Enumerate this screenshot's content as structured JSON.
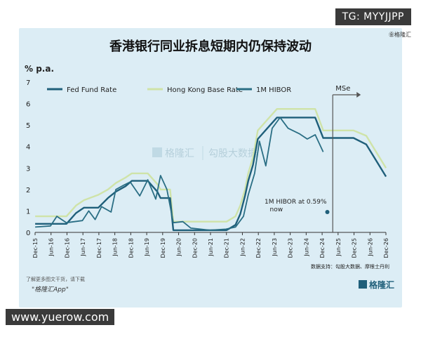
{
  "overlay": {
    "tg": "TG: MYYJJPP",
    "site": "www.yuerow.com",
    "corner": "㊎格隆汇"
  },
  "footer": {
    "note": "了解更多图文干货，请下载",
    "app": "\"格隆汇App\"",
    "source": "数据支持：勾股大数据、摩根士丹利",
    "logo": "格隆汇"
  },
  "watermark": {
    "brand": "格隆汇",
    "brand2": "勾股大数据"
  },
  "colors": {
    "panel": "#dcedf5",
    "fed": "#1f5f7a",
    "hk": "#cfe3a8",
    "hibor": "#2a6e84"
  },
  "chart_data": {
    "type": "line",
    "title": "香港银行同业拆息短期内仍保持波动",
    "ylabel": "% p.a.",
    "ylim": [
      0,
      7
    ],
    "yticks": [
      "0",
      "1",
      "2",
      "3",
      "4",
      "5",
      "6",
      "7"
    ],
    "xrange": [
      2015.917,
      2026.917
    ],
    "x_tick_labels": [
      "Dec-15",
      "Jun-16",
      "Dec-16",
      "Jun-17",
      "Dec-17",
      "Jun-18",
      "Dec-18",
      "Jun-19",
      "Dec-19",
      "Jun-20",
      "Dec-20",
      "Jun-21",
      "Dec-21",
      "Jun-22",
      "Dec-22",
      "Jun-23",
      "Dec-23",
      "Jun-24",
      "Dec-24",
      "Jun-25",
      "Dec-25",
      "Jun-26",
      "Dec-26"
    ],
    "x_tick_values": [
      2015.917,
      2016.417,
      2016.917,
      2017.417,
      2017.917,
      2018.417,
      2018.917,
      2019.417,
      2019.917,
      2020.417,
      2020.917,
      2021.417,
      2021.917,
      2022.417,
      2022.917,
      2023.417,
      2023.917,
      2024.417,
      2024.917,
      2025.417,
      2025.917,
      2026.417,
      2026.917
    ],
    "legend": "top",
    "forecast_marker": {
      "x": 2025.25,
      "label": "MSe"
    },
    "annotation": {
      "x": 2025.08,
      "y": 0.95,
      "label": "1M HIBOR at 0.59%",
      "label2": "now"
    },
    "series": [
      {
        "name": "Fed Fund Rate",
        "points": [
          [
            2015.92,
            0.4
          ],
          [
            2016.9,
            0.4
          ],
          [
            2017.2,
            0.9
          ],
          [
            2017.45,
            1.15
          ],
          [
            2017.9,
            1.15
          ],
          [
            2018.2,
            1.6
          ],
          [
            2018.45,
            1.9
          ],
          [
            2018.75,
            2.15
          ],
          [
            2018.95,
            2.4
          ],
          [
            2019.45,
            2.4
          ],
          [
            2019.6,
            2.15
          ],
          [
            2019.75,
            1.9
          ],
          [
            2019.85,
            1.6
          ],
          [
            2020.15,
            1.6
          ],
          [
            2020.25,
            0.1
          ],
          [
            2021.92,
            0.1
          ],
          [
            2022.2,
            0.35
          ],
          [
            2022.35,
            0.85
          ],
          [
            2022.5,
            1.7
          ],
          [
            2022.6,
            2.4
          ],
          [
            2022.75,
            3.15
          ],
          [
            2022.9,
            4.35
          ],
          [
            2023.2,
            4.85
          ],
          [
            2023.5,
            5.35
          ],
          [
            2024.7,
            5.35
          ],
          [
            2024.95,
            4.4
          ],
          [
            2025.9,
            4.4
          ],
          [
            2026.3,
            4.1
          ],
          [
            2026.92,
            2.6
          ]
        ]
      },
      {
        "name": "Hong Kong Base Rate",
        "points": [
          [
            2015.92,
            0.75
          ],
          [
            2016.9,
            0.75
          ],
          [
            2017.2,
            1.25
          ],
          [
            2017.45,
            1.5
          ],
          [
            2017.9,
            1.75
          ],
          [
            2018.2,
            2.0
          ],
          [
            2018.45,
            2.3
          ],
          [
            2018.75,
            2.55
          ],
          [
            2018.95,
            2.75
          ],
          [
            2019.45,
            2.75
          ],
          [
            2019.6,
            2.5
          ],
          [
            2019.75,
            2.25
          ],
          [
            2019.85,
            2.0
          ],
          [
            2020.15,
            2.0
          ],
          [
            2020.25,
            0.5
          ],
          [
            2021.92,
            0.5
          ],
          [
            2022.2,
            0.75
          ],
          [
            2022.35,
            1.25
          ],
          [
            2022.5,
            2.0
          ],
          [
            2022.6,
            2.75
          ],
          [
            2022.75,
            3.5
          ],
          [
            2022.9,
            4.75
          ],
          [
            2023.2,
            5.25
          ],
          [
            2023.5,
            5.75
          ],
          [
            2024.7,
            5.75
          ],
          [
            2024.95,
            4.75
          ],
          [
            2025.9,
            4.75
          ],
          [
            2026.3,
            4.5
          ],
          [
            2026.92,
            3.0
          ]
        ]
      },
      {
        "name": "1M HIBOR",
        "points": [
          [
            2015.92,
            0.25
          ],
          [
            2016.4,
            0.3
          ],
          [
            2016.6,
            0.75
          ],
          [
            2016.9,
            0.45
          ],
          [
            2017.4,
            0.55
          ],
          [
            2017.6,
            1.0
          ],
          [
            2017.8,
            0.6
          ],
          [
            2018.0,
            1.2
          ],
          [
            2018.3,
            0.95
          ],
          [
            2018.45,
            2.0
          ],
          [
            2018.7,
            2.2
          ],
          [
            2018.9,
            2.35
          ],
          [
            2019.2,
            1.7
          ],
          [
            2019.45,
            2.45
          ],
          [
            2019.7,
            1.55
          ],
          [
            2019.85,
            2.65
          ],
          [
            2020.05,
            2.0
          ],
          [
            2020.25,
            0.45
          ],
          [
            2020.55,
            0.5
          ],
          [
            2020.8,
            0.2
          ],
          [
            2021.4,
            0.1
          ],
          [
            2021.9,
            0.15
          ],
          [
            2022.2,
            0.25
          ],
          [
            2022.45,
            0.75
          ],
          [
            2022.6,
            1.75
          ],
          [
            2022.8,
            2.75
          ],
          [
            2022.95,
            4.25
          ],
          [
            2023.15,
            3.1
          ],
          [
            2023.35,
            4.85
          ],
          [
            2023.6,
            5.35
          ],
          [
            2023.85,
            4.85
          ],
          [
            2024.2,
            4.6
          ],
          [
            2024.45,
            4.35
          ],
          [
            2024.7,
            4.55
          ],
          [
            2024.95,
            3.75
          ]
        ]
      }
    ]
  }
}
